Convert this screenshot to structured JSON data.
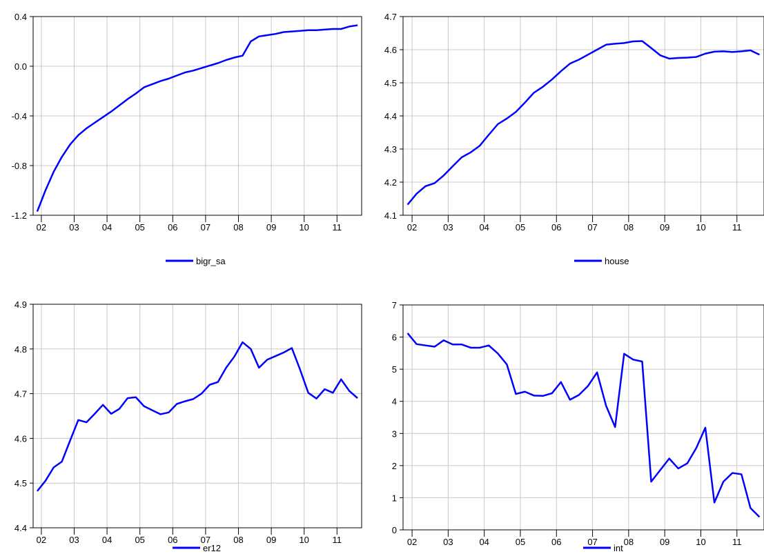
{
  "chart_data": [
    {
      "type": "line",
      "ylim": [
        -1.2,
        0.4
      ],
      "yticks": [
        "0.4",
        "0.0",
        "-0.4",
        "-0.8",
        "-1.2"
      ],
      "ytick_values": [
        0.4,
        0.0,
        -0.4,
        -0.8,
        -1.2
      ],
      "xticks": [
        "02",
        "03",
        "04",
        "05",
        "06",
        "07",
        "08",
        "09",
        "10",
        "11"
      ],
      "xlim": [
        2001.75,
        2011.75
      ],
      "series": [
        {
          "name": "bigr_sa",
          "color": "#0000ff",
          "x": [
            2001.875,
            2002.125,
            2002.375,
            2002.625,
            2002.875,
            2003.125,
            2003.375,
            2003.625,
            2003.875,
            2004.125,
            2004.375,
            2004.625,
            2004.875,
            2005.125,
            2005.375,
            2005.625,
            2005.875,
            2006.125,
            2006.375,
            2006.625,
            2006.875,
            2007.125,
            2007.375,
            2007.625,
            2007.875,
            2008.125,
            2008.375,
            2008.625,
            2008.875,
            2009.125,
            2009.375,
            2009.625,
            2009.875,
            2010.125,
            2010.375,
            2010.625,
            2010.875,
            2011.125,
            2011.375,
            2011.625
          ],
          "y": [
            -1.17,
            -1.0,
            -0.85,
            -0.73,
            -0.63,
            -0.555,
            -0.5,
            -0.455,
            -0.41,
            -0.365,
            -0.315,
            -0.265,
            -0.22,
            -0.17,
            -0.145,
            -0.12,
            -0.1,
            -0.075,
            -0.05,
            -0.035,
            -0.015,
            0.005,
            0.025,
            0.05,
            0.07,
            0.085,
            0.2,
            0.24,
            0.25,
            0.26,
            0.275,
            0.28,
            0.285,
            0.29,
            0.29,
            0.295,
            0.3,
            0.3,
            0.32,
            0.33
          ]
        }
      ]
    },
    {
      "type": "line",
      "ylim": [
        4.1,
        4.7
      ],
      "yticks": [
        "4.7",
        "4.6",
        "4.5",
        "4.4",
        "4.3",
        "4.2",
        "4.1"
      ],
      "ytick_values": [
        4.7,
        4.6,
        4.5,
        4.4,
        4.3,
        4.2,
        4.1
      ],
      "xticks": [
        "02",
        "03",
        "04",
        "05",
        "06",
        "07",
        "08",
        "09",
        "10",
        "11"
      ],
      "xlim": [
        2001.75,
        2011.75
      ],
      "series": [
        {
          "name": "house",
          "color": "#0000ff",
          "x": [
            2001.875,
            2002.125,
            2002.375,
            2002.625,
            2002.875,
            2003.125,
            2003.375,
            2003.625,
            2003.875,
            2004.125,
            2004.375,
            2004.625,
            2004.875,
            2005.125,
            2005.375,
            2005.625,
            2005.875,
            2006.125,
            2006.375,
            2006.625,
            2006.875,
            2007.125,
            2007.375,
            2007.625,
            2007.875,
            2008.125,
            2008.375,
            2008.625,
            2008.875,
            2009.125,
            2009.375,
            2009.625,
            2009.875,
            2010.125,
            2010.375,
            2010.625,
            2010.875,
            2011.125,
            2011.375,
            2011.625
          ],
          "y": [
            4.132,
            4.165,
            4.188,
            4.197,
            4.22,
            4.248,
            4.275,
            4.29,
            4.31,
            4.343,
            4.375,
            4.392,
            4.412,
            4.44,
            4.47,
            4.488,
            4.51,
            4.535,
            4.558,
            4.57,
            4.585,
            4.6,
            4.615,
            4.618,
            4.62,
            4.625,
            4.626,
            4.605,
            4.583,
            4.573,
            4.575,
            4.576,
            4.578,
            4.588,
            4.594,
            4.595,
            4.593,
            4.595,
            4.598,
            4.585
          ]
        }
      ]
    },
    {
      "type": "line",
      "ylim": [
        4.4,
        4.9
      ],
      "yticks": [
        "4.9",
        "4.8",
        "4.7",
        "4.6",
        "4.5",
        "4.4"
      ],
      "ytick_values": [
        4.9,
        4.8,
        4.7,
        4.6,
        4.5,
        4.4
      ],
      "xticks": [
        "02",
        "03",
        "04",
        "05",
        "06",
        "07",
        "08",
        "09",
        "10",
        "11"
      ],
      "xlim": [
        2001.75,
        2011.75
      ],
      "series": [
        {
          "name": "er12",
          "color": "#0000ff",
          "x": [
            2001.875,
            2002.125,
            2002.375,
            2002.625,
            2002.875,
            2003.125,
            2003.375,
            2003.625,
            2003.875,
            2004.125,
            2004.375,
            2004.625,
            2004.875,
            2005.125,
            2005.375,
            2005.625,
            2005.875,
            2006.125,
            2006.375,
            2006.625,
            2006.875,
            2007.125,
            2007.375,
            2007.625,
            2007.875,
            2008.125,
            2008.375,
            2008.625,
            2008.875,
            2009.125,
            2009.375,
            2009.625,
            2009.875,
            2010.125,
            2010.375,
            2010.625,
            2010.875,
            2011.125,
            2011.375,
            2011.625
          ],
          "y": [
            4.482,
            4.505,
            4.535,
            4.548,
            4.595,
            4.641,
            4.636,
            4.655,
            4.675,
            4.655,
            4.666,
            4.69,
            4.692,
            4.672,
            4.663,
            4.654,
            4.658,
            4.677,
            4.683,
            4.688,
            4.7,
            4.72,
            4.726,
            4.758,
            4.783,
            4.815,
            4.8,
            4.758,
            4.776,
            4.784,
            4.792,
            4.802,
            4.754,
            4.702,
            4.689,
            4.71,
            4.702,
            4.732,
            4.706,
            4.69
          ]
        }
      ]
    },
    {
      "type": "line",
      "ylim": [
        0,
        7
      ],
      "yticks": [
        "7",
        "6",
        "5",
        "4",
        "3",
        "2",
        "1",
        "0"
      ],
      "ytick_values": [
        7,
        6,
        5,
        4,
        3,
        2,
        1,
        0
      ],
      "xticks": [
        "02",
        "03",
        "04",
        "05",
        "06",
        "07",
        "08",
        "09",
        "10",
        "11"
      ],
      "xlim": [
        2001.75,
        2011.75
      ],
      "series": [
        {
          "name": "int",
          "color": "#0000ff",
          "x": [
            2001.875,
            2002.125,
            2002.375,
            2002.625,
            2002.875,
            2003.125,
            2003.375,
            2003.625,
            2003.875,
            2004.125,
            2004.375,
            2004.625,
            2004.875,
            2005.125,
            2005.375,
            2005.625,
            2005.875,
            2006.125,
            2006.375,
            2006.625,
            2006.875,
            2007.125,
            2007.375,
            2007.625,
            2007.875,
            2008.125,
            2008.375,
            2008.625,
            2008.875,
            2009.125,
            2009.375,
            2009.625,
            2009.875,
            2010.125,
            2010.375,
            2010.625,
            2010.875,
            2011.125,
            2011.375,
            2011.625
          ],
          "y": [
            6.12,
            5.78,
            5.74,
            5.7,
            5.9,
            5.77,
            5.77,
            5.67,
            5.67,
            5.74,
            5.49,
            5.15,
            4.23,
            4.3,
            4.18,
            4.17,
            4.25,
            4.6,
            4.05,
            4.2,
            4.48,
            4.9,
            3.86,
            3.2,
            5.48,
            5.3,
            5.24,
            1.5,
            1.86,
            2.22,
            1.91,
            2.07,
            2.55,
            3.18,
            0.85,
            1.5,
            1.77,
            1.73,
            0.68,
            0.4
          ]
        }
      ]
    }
  ]
}
